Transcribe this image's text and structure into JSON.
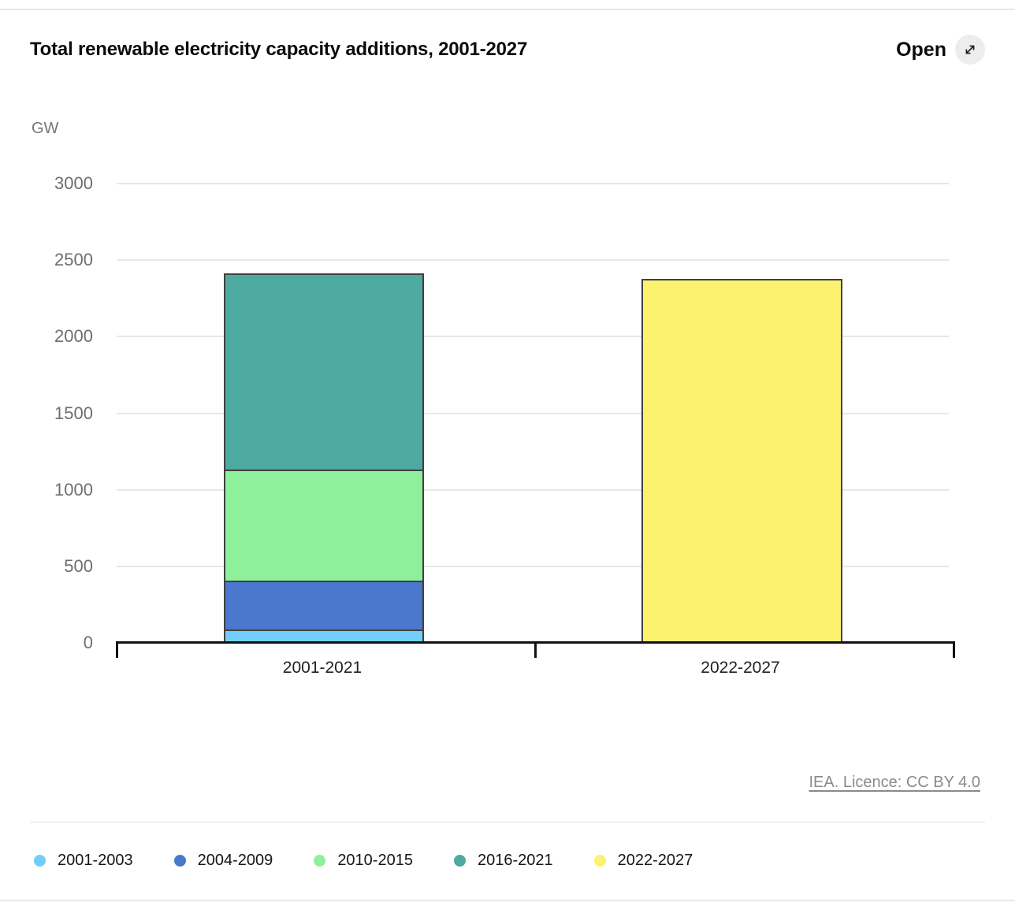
{
  "header": {
    "title": "Total renewable electricity capacity additions, 2001-2027",
    "open_label": "Open"
  },
  "footer": {
    "licence_text": "IEA. Licence: CC BY 4.0"
  },
  "chart_data": {
    "type": "bar",
    "subtype": "stacked",
    "title": "Total renewable electricity capacity additions, 2001-2027",
    "unit": "GW",
    "ylabel": "GW",
    "xlabel": "",
    "categories": [
      "2001-2021",
      "2022-2027"
    ],
    "series": [
      {
        "name": "2001-2003",
        "color": "#6FCFF8",
        "values": [
          80,
          0
        ]
      },
      {
        "name": "2004-2009",
        "color": "#4A78CD",
        "values": [
          320,
          0
        ]
      },
      {
        "name": "2010-2015",
        "color": "#8EF09B",
        "values": [
          730,
          0
        ]
      },
      {
        "name": "2016-2021",
        "color": "#4DAAA0",
        "values": [
          1270,
          0
        ]
      },
      {
        "name": "2022-2027",
        "color": "#FCF26F",
        "values": [
          0,
          2360
        ]
      }
    ],
    "totals": [
      2400,
      2360
    ],
    "yticks": [
      0,
      500,
      1000,
      1500,
      2000,
      2500,
      3000
    ],
    "ylim": [
      0,
      3000
    ],
    "grid": true,
    "legend_position": "bottom",
    "legend": [
      "2001-2003",
      "2004-2009",
      "2010-2015",
      "2016-2021",
      "2022-2027"
    ],
    "bar_outline_color": "#404040",
    "gridline_color": "#e7e7e7"
  }
}
